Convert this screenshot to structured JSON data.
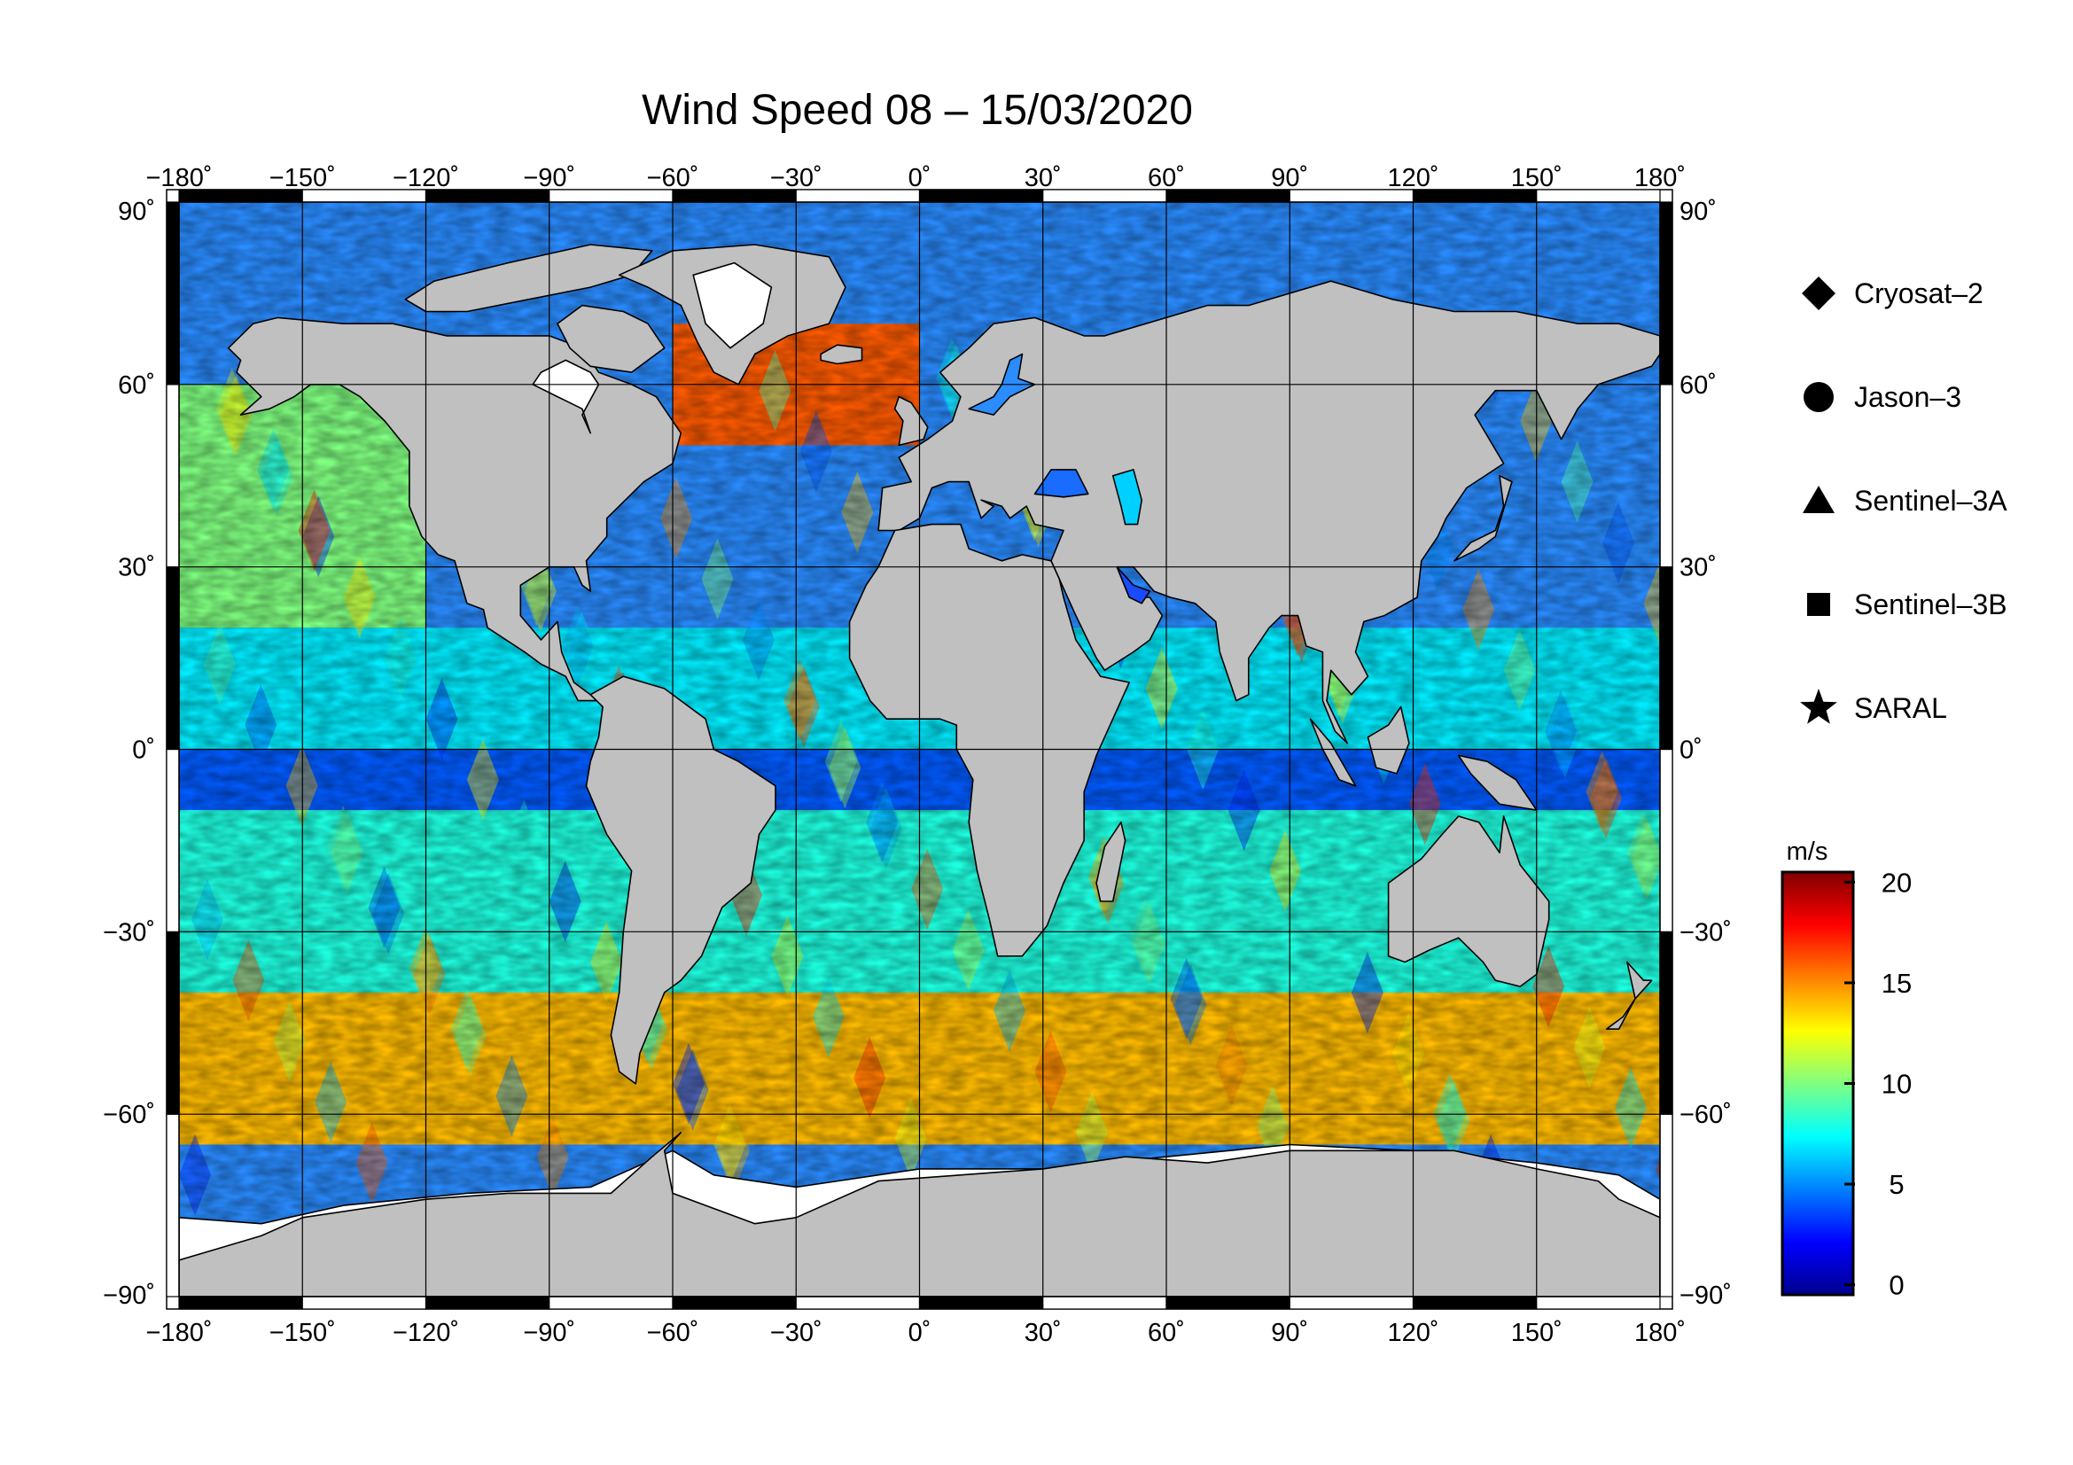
{
  "title": "Wind Speed 08 – 15/03/2020",
  "map": {
    "lon_range": [
      -180,
      180
    ],
    "lat_range": [
      -90,
      90
    ],
    "lon_ticks": [
      -180,
      -150,
      -120,
      -90,
      -60,
      -30,
      0,
      30,
      60,
      90,
      120,
      150,
      180
    ],
    "lat_ticks": [
      -90,
      -60,
      -30,
      0,
      30,
      60,
      90
    ],
    "lon_tick_labels": [
      "−180˚",
      "−150˚",
      "−120˚",
      "−90˚",
      "−60˚",
      "−30˚",
      "0˚",
      "30˚",
      "60˚",
      "90˚",
      "120˚",
      "150˚",
      "180˚"
    ],
    "lat_tick_labels": [
      "−90˚",
      "−60˚",
      "−30˚",
      "0˚",
      "30˚",
      "60˚",
      "90˚"
    ],
    "grid": true,
    "land_color": "#c0c0c0",
    "ice_color": "#ffffff",
    "coast_color": "#000000"
  },
  "legend": {
    "placement": "right",
    "items": [
      {
        "label": "Cryosat–2",
        "icon": "diamond-icon"
      },
      {
        "label": "Jason–3",
        "icon": "circle-icon"
      },
      {
        "label": "Sentinel–3A",
        "icon": "triangle-icon"
      },
      {
        "label": "Sentinel–3B",
        "icon": "square-icon"
      },
      {
        "label": "SARAL",
        "icon": "star-icon"
      }
    ]
  },
  "colorbar": {
    "unit": "m/s",
    "range": [
      -0.5,
      20.5
    ],
    "ticks": [
      0,
      5,
      10,
      15,
      20
    ],
    "tick_labels": [
      "0",
      "5",
      "10",
      "15",
      "20"
    ],
    "colormap": [
      "#00008f",
      "#0000ff",
      "#0080ff",
      "#00ffff",
      "#80ff80",
      "#ffff00",
      "#ff8000",
      "#ff0000",
      "#800000"
    ]
  },
  "chart_data": {
    "type": "heatmap",
    "variable": "Wind Speed",
    "unit": "m/s",
    "wind_bands": [
      {
        "lat_range": [
          50,
          70
        ],
        "lon_range": [
          -60,
          0
        ],
        "wind": 16
      },
      {
        "lat_range": [
          20,
          60
        ],
        "lon_range": [
          -180,
          -120
        ],
        "wind": 10
      },
      {
        "lat_range": [
          0,
          20
        ],
        "lon_range": [
          -180,
          180
        ],
        "wind": 7
      },
      {
        "lat_range": [
          -10,
          0
        ],
        "lon_range": [
          -180,
          180
        ],
        "wind": 4
      },
      {
        "lat_range": [
          -40,
          -10
        ],
        "lon_range": [
          -180,
          180
        ],
        "wind": 8
      },
      {
        "lat_range": [
          -65,
          -40
        ],
        "lon_range": [
          -180,
          180
        ],
        "wind": 14
      }
    ]
  }
}
